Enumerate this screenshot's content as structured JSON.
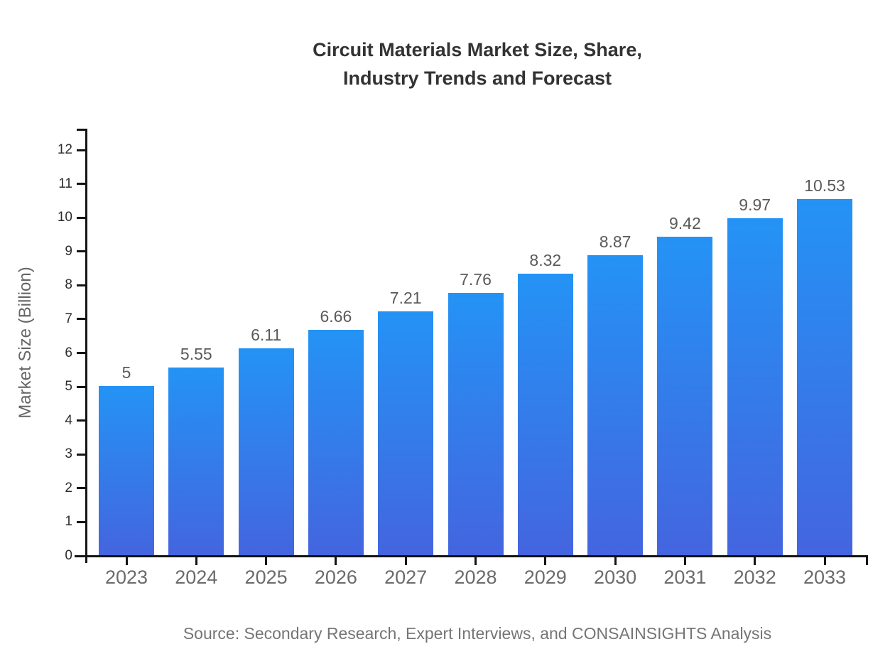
{
  "header": {
    "title_line1": "Circuit Materials Market Size, Share,",
    "title_line2": "Industry Trends and Forecast"
  },
  "footer": {
    "source": "Source: Secondary Research, Expert Interviews, and CONSAINSIGHTS Analysis"
  },
  "chart_data": {
    "type": "bar",
    "title": "Circuit Materials Market Size, Share, Industry Trends and Forecast",
    "categories": [
      "2023",
      "2024",
      "2025",
      "2026",
      "2027",
      "2028",
      "2029",
      "2030",
      "2031",
      "2032",
      "2033"
    ],
    "values": [
      5,
      5.55,
      6.11,
      6.66,
      7.21,
      7.76,
      8.32,
      8.87,
      9.42,
      9.97,
      10.53
    ],
    "value_labels": [
      "5",
      "5.55",
      "6.11",
      "6.66",
      "7.21",
      "7.76",
      "8.32",
      "8.87",
      "9.42",
      "9.97",
      "10.53"
    ],
    "xlabel": "",
    "ylabel": "Market Size (Billion)",
    "ylim": [
      0,
      12
    ],
    "yticks": [
      0,
      1,
      2,
      3,
      4,
      5,
      6,
      7,
      8,
      9,
      10,
      11,
      12
    ],
    "grid": false,
    "legend": null,
    "bar_color_top": "#2493F5",
    "bar_color_bottom": "#4465DF"
  },
  "style": {
    "title_color": "#333333",
    "axis_color": "#141414",
    "ytick_label_color": "#2d2d2d",
    "xtick_label_color": "#6b6b6b",
    "value_label_color": "#5a5a5a",
    "ylabel_color": "#666666",
    "source_color": "#757575",
    "background": "#ffffff"
  }
}
